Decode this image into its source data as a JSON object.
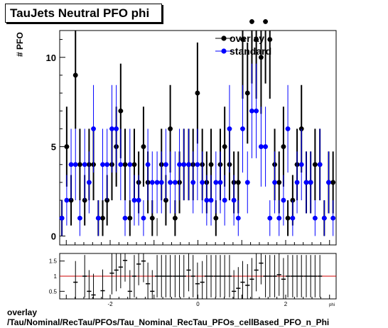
{
  "title": "TauJets Neutral PFO phi",
  "ylabel": "# PFO",
  "xlabel_clipped": "phi",
  "caption": {
    "line1": "overlay",
    "line2": "/Tau/Nominal/RecTau/PFOs/Tau_Nominal_RecTau_PFOs_cellBased_PFO_n_Phi"
  },
  "chart_data": [
    {
      "type": "scatter",
      "x": [
        -3.1,
        -2.99,
        -2.89,
        -2.79,
        -2.69,
        -2.58,
        -2.48,
        -2.38,
        -2.27,
        -2.17,
        -2.07,
        -1.96,
        -1.86,
        -1.76,
        -1.66,
        -1.55,
        -1.45,
        -1.35,
        -1.24,
        -1.14,
        -1.04,
        -0.93,
        -0.83,
        -0.73,
        -0.63,
        -0.52,
        -0.42,
        -0.32,
        -0.21,
        -0.11,
        -0.01,
        0.1,
        0.2,
        0.3,
        0.41,
        0.51,
        0.61,
        0.72,
        0.82,
        0.92,
        1.02,
        1.13,
        1.23,
        1.33,
        1.44,
        1.54,
        1.64,
        1.75,
        1.85,
        1.95,
        2.05,
        2.16,
        2.26,
        2.36,
        2.47,
        2.57,
        2.67,
        2.78,
        2.88,
        2.98,
        3.08
      ],
      "series": [
        {
          "name": "overlay",
          "color": "#000000",
          "values": [
            1,
            5,
            2,
            9,
            4,
            2,
            4,
            4,
            1,
            1,
            2,
            4,
            5,
            7,
            4,
            1,
            4,
            3,
            5,
            3,
            1,
            0,
            4,
            2,
            6,
            1,
            3,
            4,
            4,
            4,
            8,
            4,
            3,
            4,
            1,
            4,
            5,
            4,
            3,
            3,
            11,
            8,
            12,
            11,
            10,
            12,
            11,
            4,
            3,
            5,
            1,
            2,
            4,
            6,
            3,
            3,
            4,
            4,
            1,
            3,
            3
          ]
        },
        {
          "name": "standard",
          "color": "#0000ff",
          "values": [
            1,
            2,
            4,
            4,
            1,
            4,
            3,
            6,
            1,
            4,
            4,
            6,
            6,
            4,
            1,
            4,
            2,
            2,
            1,
            4,
            3,
            3,
            3,
            4,
            3,
            3,
            4,
            4,
            4,
            3,
            4,
            3,
            2,
            2,
            3,
            3,
            2,
            6,
            2,
            1,
            6,
            3,
            7,
            7,
            5,
            5,
            1,
            3,
            1,
            2,
            6,
            1,
            3,
            4,
            3,
            3,
            1,
            4,
            1,
            3,
            1
          ]
        }
      ],
      "legend": [
        "overlay",
        "standard"
      ],
      "legend_position": "top-right",
      "xlim": [
        -3.15,
        3.15
      ],
      "ylim": [
        -0.5,
        11.5
      ],
      "yticks": [
        0,
        5,
        10
      ],
      "ytick_labels": [
        "0",
        "5",
        "10"
      ]
    },
    {
      "type": "scatter",
      "description_role": "ratio panel",
      "x": [
        -2.79,
        -2.58,
        -2.48,
        -2.38,
        -2.17,
        -1.96,
        -1.86,
        -1.76,
        -1.66,
        -1.55,
        -1.45,
        -1.35,
        -1.24,
        -1.14,
        -1.04,
        -0.93,
        -0.83,
        -0.73,
        -0.63,
        -0.52,
        -0.42,
        -0.32,
        -0.21,
        -0.11,
        -0.01,
        0.1,
        0.2,
        0.3,
        0.41,
        0.51,
        0.61,
        0.72,
        0.82,
        0.92,
        1.02,
        1.13,
        1.23,
        1.33,
        1.44,
        1.54,
        1.64,
        1.75,
        1.85,
        1.95,
        2.05,
        2.16,
        2.26,
        2.36,
        2.47,
        2.57,
        2.67,
        2.78
      ],
      "values": [
        0.8,
        1.0,
        0.5,
        0.38,
        0.52,
        1.1,
        1.2,
        1.3,
        1.52,
        0.5,
        1.0,
        1.4,
        1.5,
        0.75,
        0.5,
        1.0,
        1.0,
        1.0,
        1.0,
        1.0,
        1.0,
        1.0,
        1.2,
        1.0,
        0.75,
        0.8,
        1.0,
        1.0,
        1.0,
        1.0,
        1.0,
        1.0,
        0.5,
        0.6,
        0.8,
        0.7,
        0.9,
        1.2,
        1.43,
        1.0,
        1.0,
        1.0,
        1.05,
        0.9,
        1.0,
        1.0,
        1.0,
        1.0,
        1.0,
        1.0,
        1.0,
        1.0
      ],
      "reference_line": 1.0,
      "reference_color": "#cc0000",
      "xlim": [
        -3.15,
        3.15
      ],
      "ylim": [
        0.25,
        1.75
      ],
      "xticks": [
        -2,
        0,
        2
      ],
      "xtick_labels": [
        "-2",
        "0",
        "2"
      ],
      "yticks": [
        0.5,
        1,
        1.5
      ],
      "ytick_labels": [
        "0.5",
        "1",
        "1.5"
      ]
    }
  ]
}
